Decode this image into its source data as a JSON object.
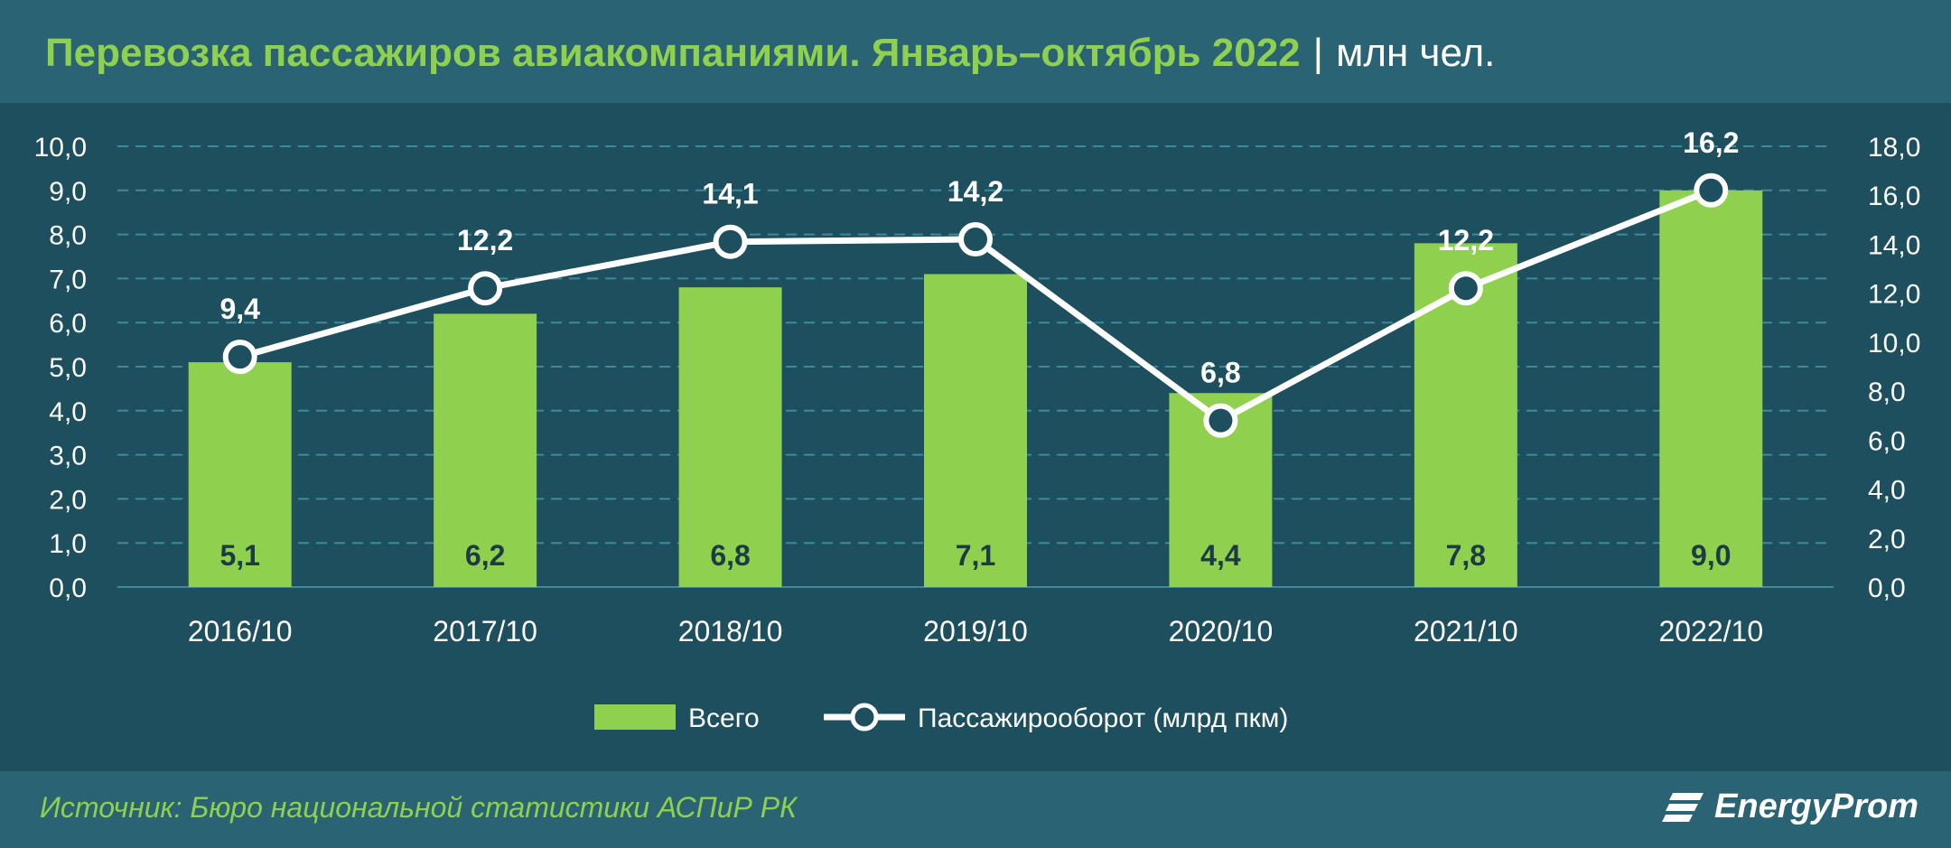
{
  "header": {
    "title": "Перевозка пассажиров авиакомпаниями. Январь–октябрь 2022",
    "separator": "|",
    "unit": "млн чел."
  },
  "footer": {
    "source": "Источник: Бюро национальной статистики АСПиР РК",
    "brand": "EnergyProm"
  },
  "colors": {
    "background": "#1d4f5f",
    "header_band": "#2a6373",
    "bar": "#8fd14f",
    "line": "#ffffff",
    "title": "#8fd14f",
    "grid": "#3f8a98"
  },
  "chart_data": {
    "type": "bar",
    "categories": [
      "2016/10",
      "2017/10",
      "2018/10",
      "2019/10",
      "2020/10",
      "2021/10",
      "2022/10"
    ],
    "series": [
      {
        "name": "Всего",
        "type": "bar",
        "axis": "left",
        "values": [
          5.1,
          6.2,
          6.8,
          7.1,
          4.4,
          7.8,
          9.0
        ],
        "labels": [
          "5,1",
          "6,2",
          "6,8",
          "7,1",
          "4,4",
          "7,8",
          "9,0"
        ]
      },
      {
        "name": "Пассажирооборот (млрд пкм)",
        "type": "line",
        "axis": "right",
        "values": [
          9.4,
          12.2,
          14.1,
          14.2,
          6.8,
          12.2,
          16.2
        ],
        "labels": [
          "9,4",
          "12,2",
          "14,1",
          "14,2",
          "6,8",
          "12,2",
          "16,2"
        ]
      }
    ],
    "y_left": {
      "range": [
        0,
        10
      ],
      "ticks": [
        "0,0",
        "1,0",
        "2,0",
        "3,0",
        "4,0",
        "5,0",
        "6,0",
        "7,0",
        "8,0",
        "9,0",
        "10,0"
      ]
    },
    "y_right": {
      "range": [
        0,
        18
      ],
      "ticks": [
        "0,0",
        "2,0",
        "4,0",
        "6,0",
        "8,0",
        "10,0",
        "12,0",
        "14,0",
        "16,0",
        "18,0"
      ]
    },
    "grid": true,
    "legend_position": "bottom"
  }
}
